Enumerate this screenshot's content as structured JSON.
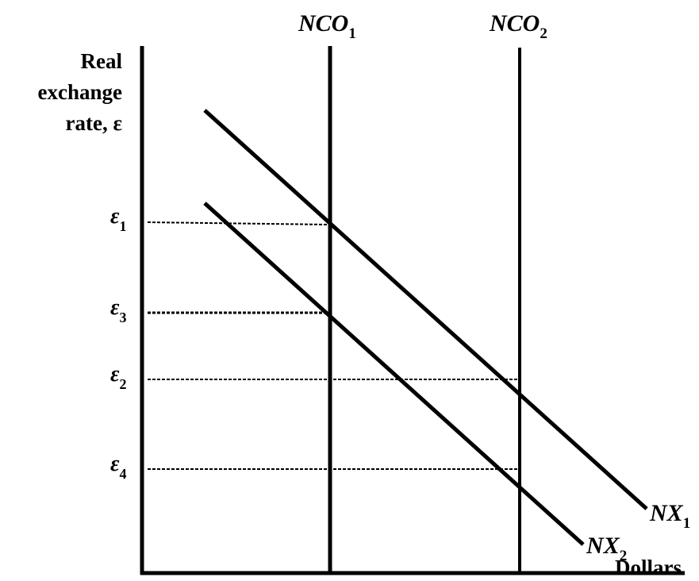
{
  "y_axis_label": [
    "Real",
    "exchange",
    "rate, ε"
  ],
  "x_axis_label": "Dollars",
  "vertical_lines": [
    {
      "name": "NCO",
      "sub": "1"
    },
    {
      "name": "NCO",
      "sub": "2"
    }
  ],
  "sloped_lines": [
    {
      "name": "NX",
      "sub": "1"
    },
    {
      "name": "NX",
      "sub": "2"
    }
  ],
  "exchange_rate_levels": [
    {
      "symbol": "ε",
      "sub": "1"
    },
    {
      "symbol": "ε",
      "sub": "3"
    },
    {
      "symbol": "ε",
      "sub": "2"
    },
    {
      "symbol": "ε",
      "sub": "4"
    }
  ],
  "colors": {
    "ink": "#000000",
    "background": "#ffffff"
  }
}
